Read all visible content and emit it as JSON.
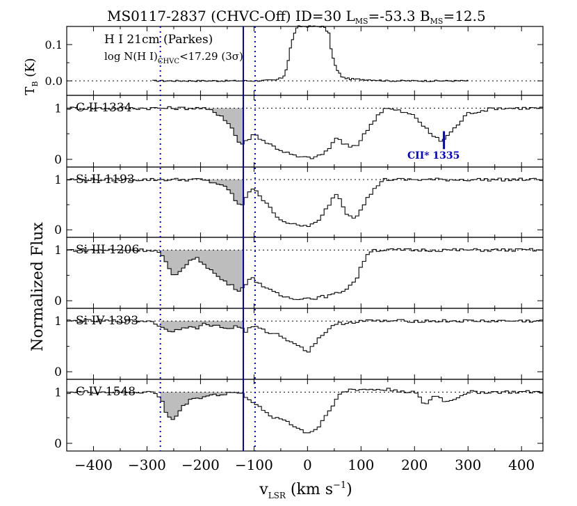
{
  "header": {
    "target": "MS0117-2837",
    "tag": "(CHVC-Off)",
    "id_text": "ID=30",
    "lms_label": "L",
    "lms_sub": "MS",
    "lms_value": "=-53.3",
    "bms_label": "B",
    "bms_sub": "MS",
    "bms_value": "=12.5"
  },
  "top_panel": {
    "label": "H I 21cm (Parkes)",
    "lognh_prefix": "log N(H I)",
    "lognh_sub": "CHVC",
    "lognh_value": "<17.29 (3σ)",
    "ylabel_main": "T",
    "ylabel_sub": "B",
    "ylabel_unit": "(K)",
    "yticks": [
      "0.1",
      "0.0"
    ]
  },
  "axes": {
    "ylabel": "Normalized Flux",
    "xlabel_main": "v",
    "xlabel_sub": "LSR",
    "xlabel_unit": "(km s",
    "xlabel_exp": "−1",
    "xlabel_close": ")",
    "xticks": [
      "−400",
      "−300",
      "−200",
      "−100",
      "0",
      "100",
      "200",
      "300",
      "400"
    ],
    "flux_yticks": [
      "1",
      "0"
    ]
  },
  "annotation": {
    "ciistar": "CII* 1335"
  },
  "colors": {
    "accent": "#0000cc",
    "shade": "#bdbdbd",
    "line": "#000000"
  },
  "chart_data": {
    "type": "line",
    "xlim": [
      -450,
      440
    ],
    "markers": {
      "solid": -120,
      "dotted": [
        -275,
        -98
      ]
    },
    "integration_window": [
      -275,
      -120
    ],
    "panels": [
      {
        "name": "H I 21cm",
        "ylim": [
          -0.04,
          0.15
        ],
        "x": [
          -290,
          -100,
          -60,
          -45,
          -38,
          -32,
          -25,
          -18,
          -10,
          0,
          10,
          20,
          30,
          40,
          45,
          50,
          55,
          60,
          65,
          70,
          80,
          100,
          120,
          150,
          200,
          300
        ],
        "y": [
          0.0,
          0.0,
          0.002,
          0.01,
          0.04,
          0.09,
          0.13,
          0.15,
          0.15,
          0.15,
          0.15,
          0.15,
          0.15,
          0.13,
          0.08,
          0.05,
          0.03,
          0.02,
          0.01,
          0.008,
          0.005,
          0.004,
          0.003,
          0.0,
          0.0,
          0.0
        ]
      },
      {
        "name": "C II 1334",
        "ylim": [
          -0.15,
          1.25
        ],
        "x": [
          -450,
          -250,
          -200,
          -180,
          -160,
          -140,
          -130,
          -120,
          -110,
          -100,
          -80,
          -50,
          -20,
          0,
          20,
          40,
          55,
          65,
          80,
          95,
          110,
          130,
          145,
          170,
          200,
          230,
          250,
          270,
          300,
          350,
          400,
          440
        ],
        "y": [
          1.0,
          1.0,
          1.0,
          0.95,
          0.85,
          0.6,
          0.35,
          0.3,
          0.4,
          0.5,
          0.35,
          0.18,
          0.05,
          0.03,
          0.05,
          0.2,
          0.45,
          0.3,
          0.25,
          0.3,
          0.55,
          0.85,
          1.0,
          0.95,
          0.85,
          0.5,
          0.35,
          0.55,
          0.9,
          1.0,
          1.0,
          1.0
        ]
      },
      {
        "name": "Si II 1193",
        "ylim": [
          -0.15,
          1.25
        ],
        "x": [
          -450,
          -250,
          -200,
          -180,
          -160,
          -140,
          -130,
          -120,
          -110,
          -100,
          -80,
          -50,
          -20,
          0,
          20,
          40,
          55,
          65,
          75,
          90,
          110,
          140,
          200,
          300,
          440
        ],
        "y": [
          1.0,
          1.0,
          1.0,
          0.95,
          0.9,
          0.7,
          0.5,
          0.5,
          0.75,
          0.85,
          0.55,
          0.2,
          0.08,
          0.08,
          0.15,
          0.5,
          0.75,
          0.5,
          0.3,
          0.25,
          0.6,
          1.0,
          1.0,
          1.0,
          1.0
        ]
      },
      {
        "name": "Si III 1206",
        "ylim": [
          -0.15,
          1.25
        ],
        "x": [
          -450,
          -290,
          -275,
          -262,
          -250,
          -240,
          -225,
          -210,
          -195,
          -180,
          -165,
          -150,
          -135,
          -125,
          -115,
          -105,
          -90,
          -70,
          -50,
          -30,
          -10,
          10,
          30,
          50,
          70,
          90,
          100,
          110,
          120,
          140,
          200,
          300,
          440
        ],
        "y": [
          1.0,
          1.0,
          0.95,
          0.7,
          0.45,
          0.55,
          0.75,
          0.85,
          0.75,
          0.6,
          0.45,
          0.35,
          0.25,
          0.2,
          0.35,
          0.45,
          0.35,
          0.2,
          0.1,
          0.05,
          0.05,
          0.05,
          0.08,
          0.12,
          0.22,
          0.4,
          0.65,
          0.9,
          1.0,
          1.0,
          1.0,
          1.0,
          1.0
        ]
      },
      {
        "name": "Si IV 1393",
        "ylim": [
          -0.15,
          1.25
        ],
        "x": [
          -450,
          -290,
          -270,
          -250,
          -230,
          -210,
          -190,
          -170,
          -150,
          -130,
          -115,
          -100,
          -80,
          -60,
          -40,
          -20,
          -10,
          0,
          10,
          20,
          40,
          60,
          100,
          150,
          200,
          300,
          440
        ],
        "y": [
          1.0,
          1.0,
          0.85,
          0.8,
          0.9,
          0.85,
          0.95,
          0.9,
          0.85,
          0.9,
          0.8,
          0.9,
          0.8,
          0.75,
          0.65,
          0.55,
          0.45,
          0.4,
          0.5,
          0.65,
          0.85,
          0.95,
          1.0,
          1.0,
          1.0,
          1.0,
          1.0
        ]
      },
      {
        "name": "C IV 1548",
        "ylim": [
          -0.15,
          1.25
        ],
        "x": [
          -450,
          -290,
          -275,
          -262,
          -250,
          -238,
          -225,
          -210,
          -195,
          -180,
          -160,
          -140,
          -120,
          -100,
          -80,
          -60,
          -40,
          -20,
          0,
          20,
          40,
          60,
          80,
          100,
          150,
          200,
          220,
          240,
          260,
          300,
          440
        ],
        "y": [
          1.0,
          1.0,
          0.9,
          0.55,
          0.45,
          0.65,
          0.8,
          0.9,
          0.9,
          0.95,
          0.95,
          1.0,
          0.95,
          0.8,
          0.6,
          0.5,
          0.45,
          0.3,
          0.2,
          0.3,
          0.65,
          0.95,
          1.05,
          1.05,
          1.05,
          1.0,
          0.75,
          0.95,
          0.8,
          1.0,
          1.0
        ]
      }
    ],
    "title": "MS0117-2837 (CHVC-Off) ID=30 LMS=-53.3 BMS=12.5",
    "ylabel": "Normalized Flux",
    "xlabel": "vLSR (km s−1)"
  }
}
